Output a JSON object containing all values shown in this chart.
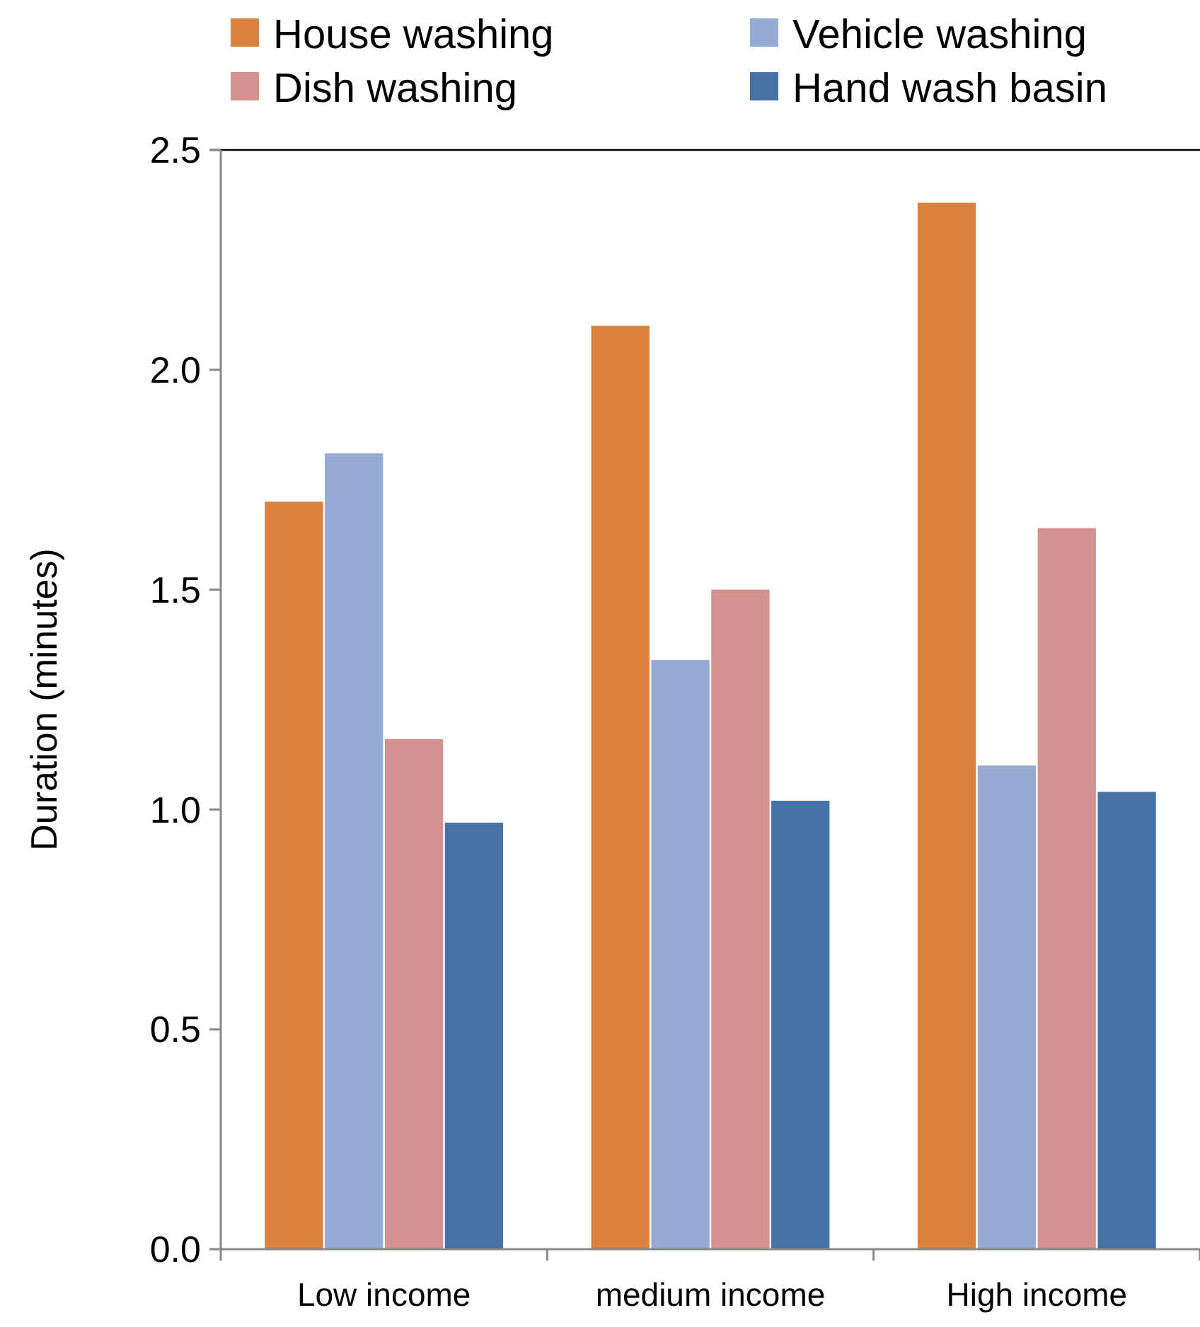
{
  "chart_data": {
    "type": "bar",
    "ylabel": "Duration (minutes)",
    "categories": [
      "Low income",
      "medium income",
      "High income"
    ],
    "series": [
      {
        "name": "House washing",
        "color": "#dc823e",
        "values": [
          1.7,
          2.1,
          2.38
        ]
      },
      {
        "name": "Vehicle washing",
        "color": "#95abd3",
        "values": [
          1.81,
          1.34,
          1.1
        ]
      },
      {
        "name": "Dish washing",
        "color": "#d49190",
        "values": [
          1.16,
          1.5,
          1.64
        ]
      },
      {
        "name": "Hand wash basin",
        "color": "#4672a8",
        "values": [
          0.97,
          1.02,
          1.04
        ]
      }
    ],
    "ylim": [
      0,
      2.5
    ],
    "yticks": [
      {
        "value": 0,
        "label": "0.0"
      },
      {
        "value": 0.5,
        "label": "0.5"
      },
      {
        "value": 1,
        "label": "1.0"
      },
      {
        "value": 1.5,
        "label": "1.5"
      },
      {
        "value": 2,
        "label": "2.0"
      },
      {
        "value": 2.5,
        "label": "2.5"
      }
    ],
    "grid": false,
    "legend": "top"
  }
}
